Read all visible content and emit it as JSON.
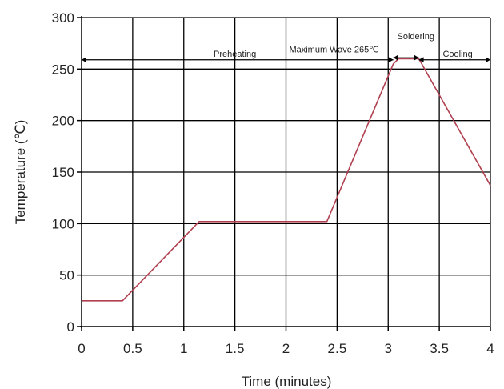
{
  "chart_data": {
    "type": "line",
    "xlabel": "Time (minutes)",
    "ylabel": "Temperature (℃)",
    "xlim": [
      0,
      4
    ],
    "ylim": [
      0,
      300
    ],
    "grid": true,
    "x_ticks": [
      0,
      0.5,
      1,
      1.5,
      2,
      2.5,
      3,
      3.5,
      4
    ],
    "x_tick_labels": [
      "0",
      "0.5",
      "1",
      "1.5",
      "2",
      "2.5",
      "3",
      "3.5",
      "4"
    ],
    "y_ticks": [
      0,
      50,
      100,
      150,
      200,
      250,
      300
    ],
    "y_tick_labels": [
      "0",
      "50",
      "100",
      "150",
      "200",
      "250",
      "300"
    ],
    "series": [
      {
        "color": "#b0404f",
        "x": [
          0,
          0.4,
          1.15,
          2.4,
          3.05,
          3.1,
          3.3,
          4.0
        ],
        "y": [
          25,
          25,
          102,
          102,
          255,
          260,
          260,
          137
        ]
      }
    ],
    "annotations": [
      {
        "text": "Preheating",
        "x_range": [
          0,
          3.05
        ],
        "y": 259,
        "label_x": 1.5,
        "label_y": 262
      },
      {
        "text": "Maximum Wave 265℃",
        "label_x": 2.47,
        "label_y": 266
      },
      {
        "text": "Soldering",
        "x_range": [
          3.05,
          3.3
        ],
        "y": 261,
        "label_x": 3.27,
        "label_y": 279
      },
      {
        "text": "Cooling",
        "x_range": [
          3.3,
          4.0
        ],
        "y": 259,
        "label_x": 3.68,
        "label_y": 262
      }
    ]
  }
}
